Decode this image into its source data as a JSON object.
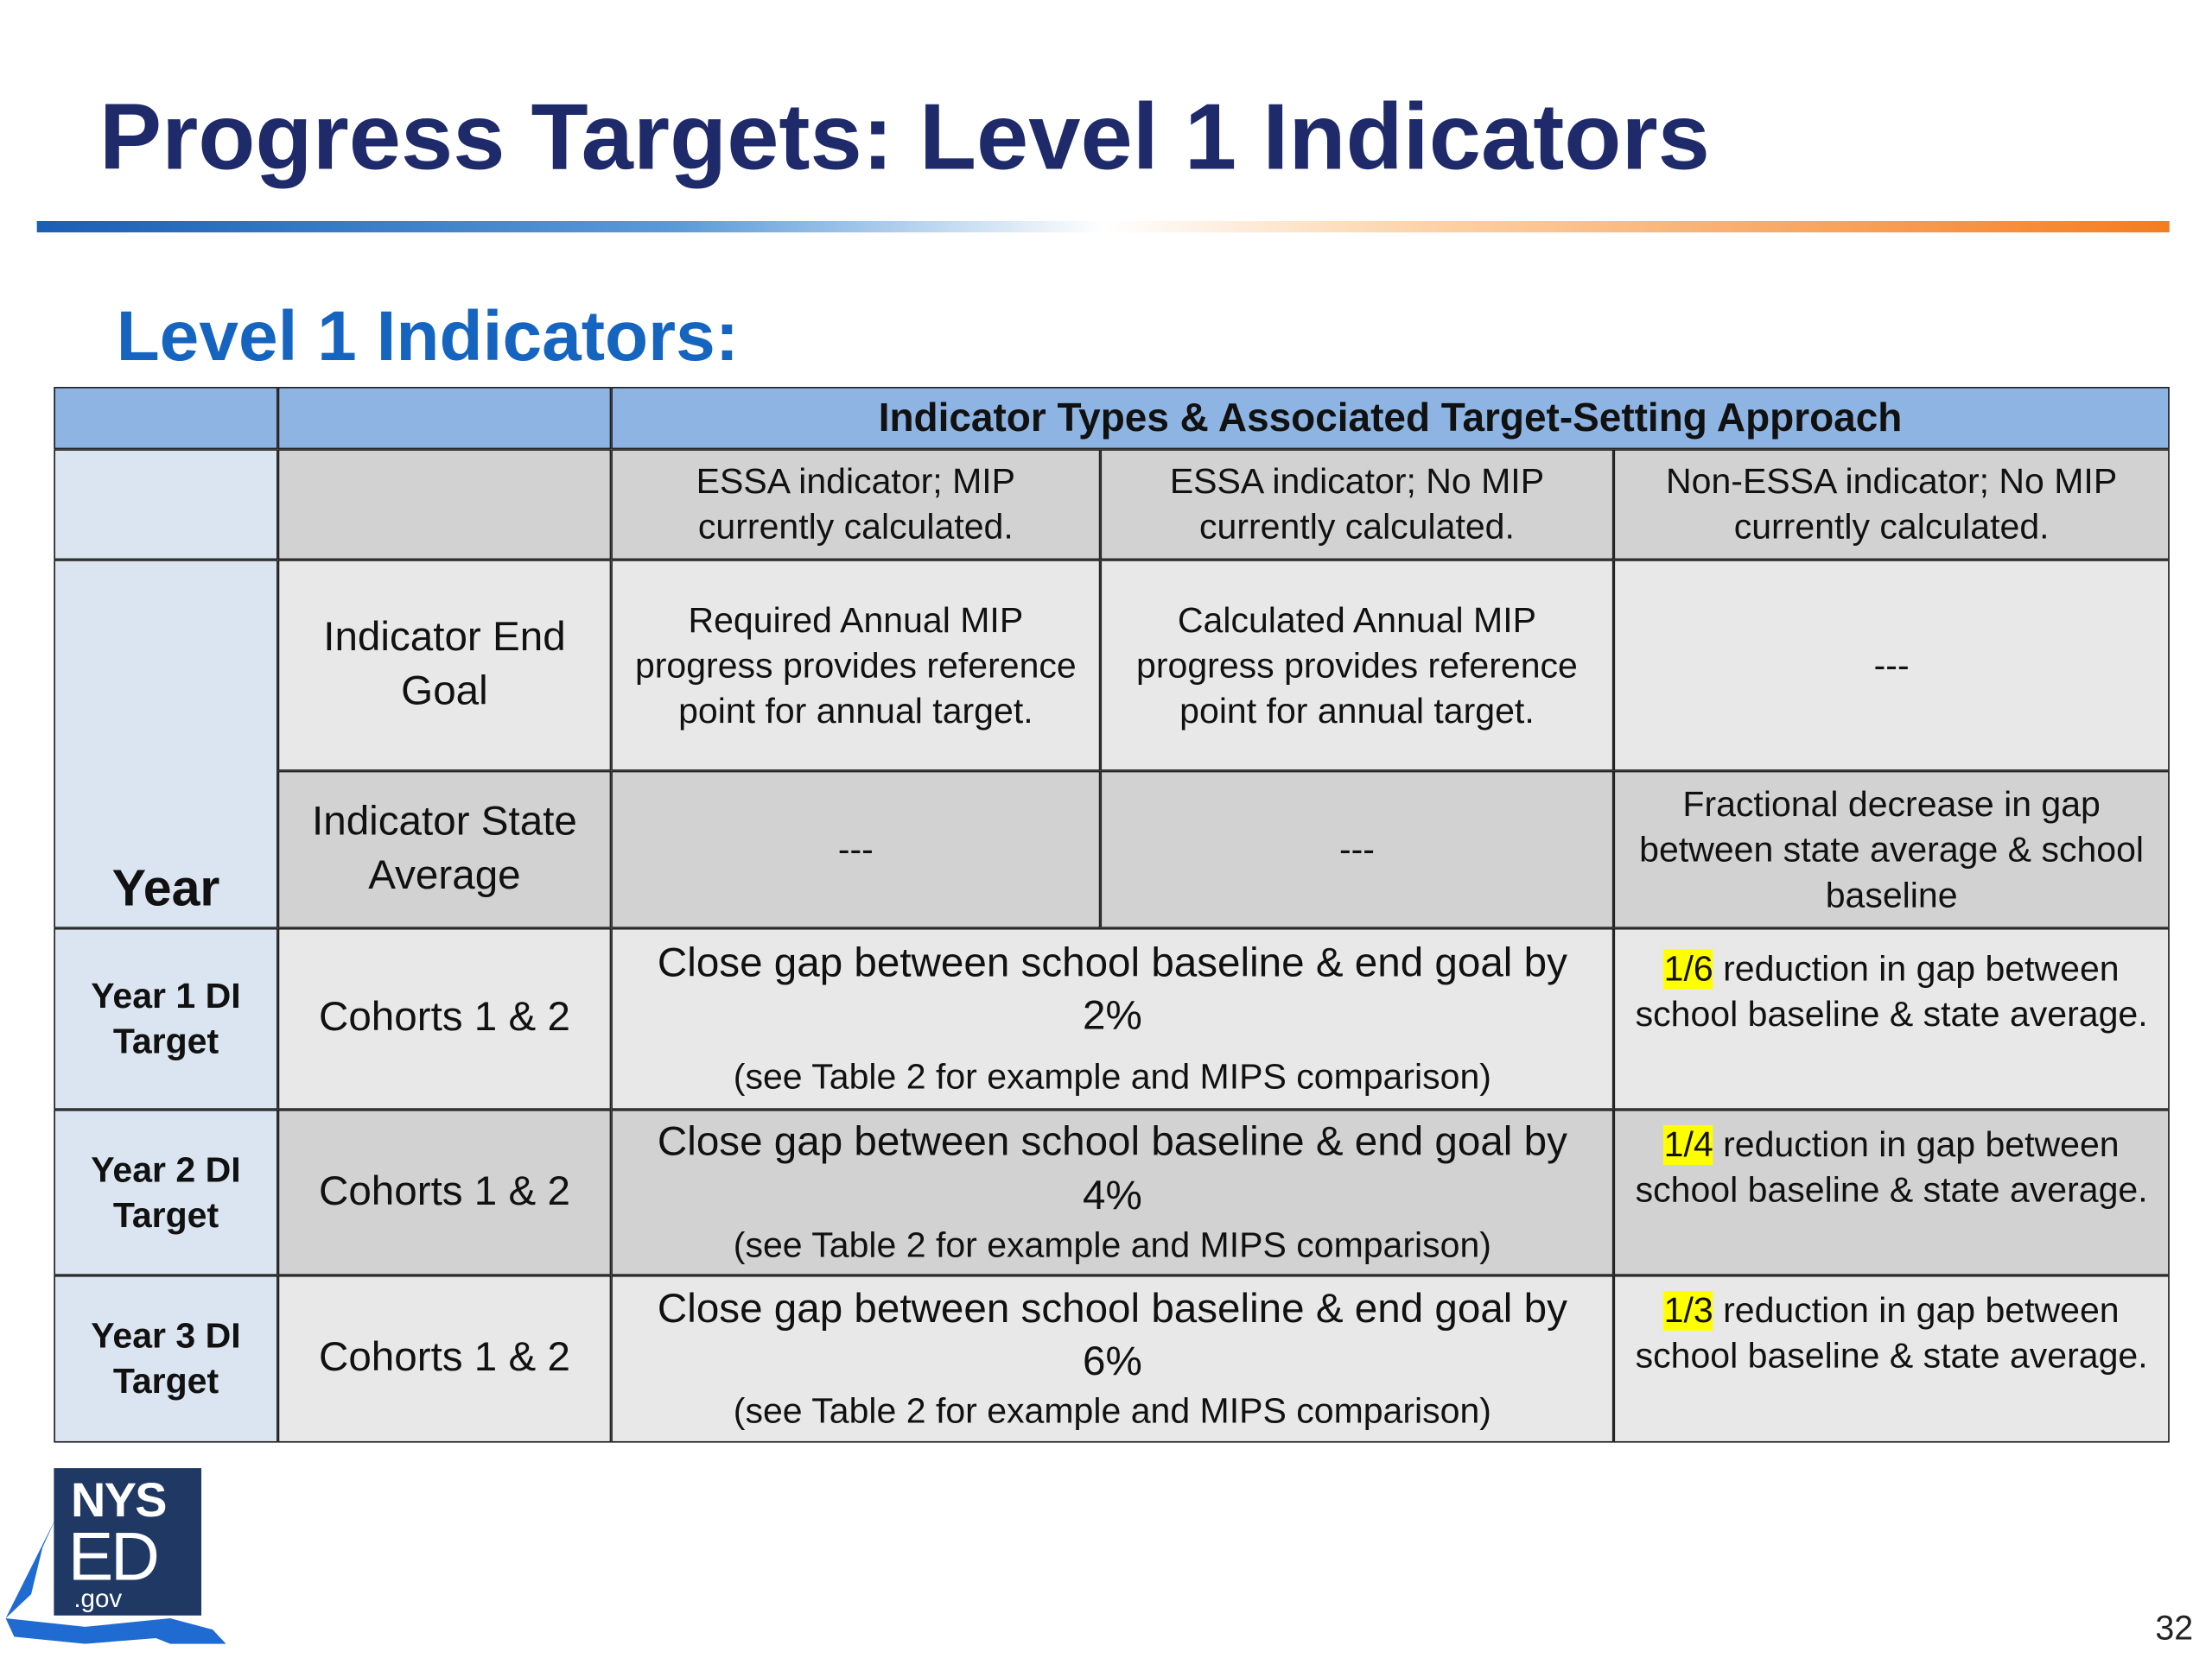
{
  "header": {
    "title": "Progress Targets: Level 1 Indicators",
    "subtitle": "Level 1 Indicators:"
  },
  "table": {
    "group_header": "Indicator Types & Associated Target-Setting Approach",
    "column_headers": [
      "ESSA indicator; MIP currently calculated.",
      "ESSA indicator; No MIP currently calculated.",
      "Non-ESSA indicator; No MIP currently calculated."
    ],
    "year_label": "Year",
    "rows": [
      {
        "label": "Indicator End Goal",
        "cells": [
          "Required Annual MIP progress provides reference point for annual target.",
          "Calculated Annual MIP progress provides reference point for annual target.",
          "---"
        ]
      },
      {
        "label": "Indicator State Average",
        "cells": [
          "---",
          "---",
          "Fractional decrease in gap between state average & school baseline"
        ]
      }
    ],
    "targets": [
      {
        "year": "Year 1 DI Target",
        "cohorts": "Cohorts 1 & 2",
        "essa_target": "Close gap between school baseline & end goal by 2%",
        "note": "(see Table 2 for example and MIPS comparison)",
        "fraction": "1/6",
        "non_essa_target": "reduction in gap between school baseline & state average."
      },
      {
        "year": "Year 2 DI Target",
        "cohorts": "Cohorts 1 & 2",
        "essa_target": "Close gap between school baseline & end goal by 4%",
        "note": "(see Table 2 for example and MIPS comparison)",
        "fraction": "1/4",
        "non_essa_target": "reduction in gap between school baseline & state average."
      },
      {
        "year": "Year 3 DI Target",
        "cohorts": "Cohorts 1 & 2",
        "essa_target": "Close gap between school baseline & end goal by 6%",
        "note": "(see Table 2 for example and MIPS comparison)",
        "fraction": "1/3",
        "non_essa_target": "reduction in gap between school baseline & state average."
      }
    ]
  },
  "footer": {
    "logo_top": "NYS",
    "logo_main": "ED",
    "logo_sub": ".gov",
    "page_number": "32"
  }
}
